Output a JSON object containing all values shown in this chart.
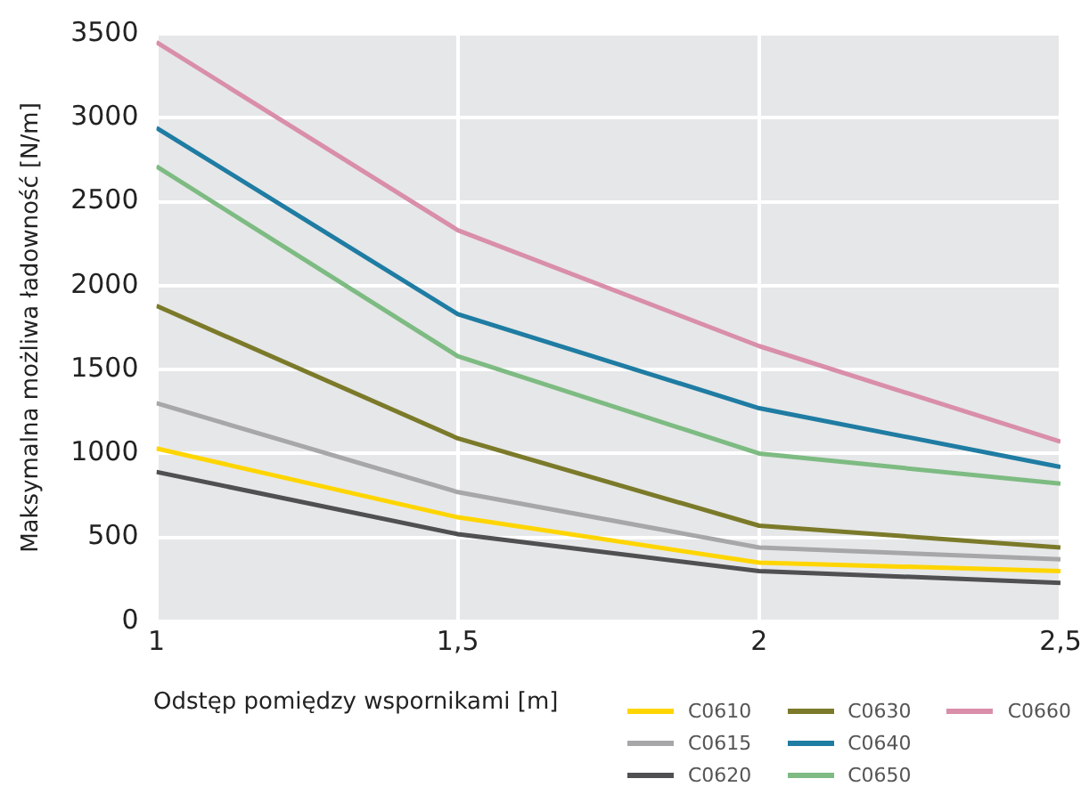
{
  "chart_data": {
    "type": "line",
    "xlabel": "Odstęp pomiędzy wspornikami [m]",
    "ylabel": "Maksymalna możliwa ładowność [N/m]",
    "x": [
      1,
      1.5,
      2,
      2.5
    ],
    "series": [
      {
        "name": "C0610",
        "color": "#ffd500",
        "values": [
          1030,
          620,
          350,
          300
        ]
      },
      {
        "name": "C0615",
        "color": "#a7a7a9",
        "values": [
          1300,
          770,
          440,
          370
        ]
      },
      {
        "name": "C0620",
        "color": "#505053",
        "values": [
          890,
          520,
          300,
          230
        ]
      },
      {
        "name": "C0630",
        "color": "#7b7a2a",
        "values": [
          1880,
          1090,
          570,
          440
        ]
      },
      {
        "name": "C0640",
        "color": "#1f7ca3",
        "values": [
          2940,
          1830,
          1270,
          920
        ]
      },
      {
        "name": "C0650",
        "color": "#7dbb82",
        "values": [
          2710,
          1580,
          1000,
          820
        ]
      },
      {
        "name": "C0660",
        "color": "#d98ea9",
        "values": [
          3450,
          2330,
          1640,
          1070
        ]
      }
    ],
    "xlim": [
      1,
      2.5
    ],
    "xticks": [
      1,
      {
        "value": 1.5,
        "label": "1,5"
      },
      2,
      {
        "value": 2.5,
        "label": "2,5"
      }
    ],
    "ylim": [
      0,
      3500
    ],
    "yticks": [
      0,
      500,
      1000,
      1500,
      2000,
      2500,
      3000,
      3500
    ],
    "grid": true,
    "legend": "bottom right",
    "marker": "none",
    "line_style": "solid"
  }
}
